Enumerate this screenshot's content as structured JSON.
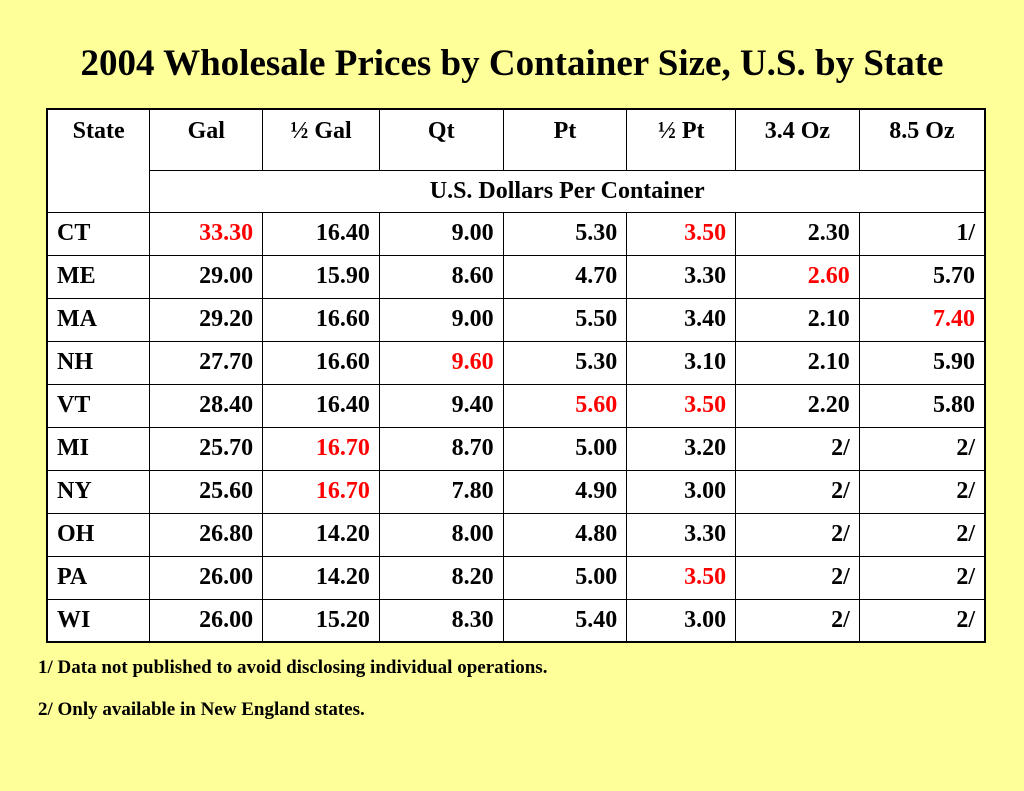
{
  "title": "2004 Wholesale Prices by Container Size, U.S. by State",
  "table": {
    "headers": [
      "State",
      "Gal",
      "½ Gal",
      "Qt",
      "Pt",
      "½ Pt",
      "3.4 Oz",
      "8.5 Oz"
    ],
    "units": "U.S. Dollars Per Container",
    "highlight_color": "#FF0000",
    "rows": [
      {
        "state": "CT",
        "values": [
          "33.30",
          "16.40",
          "9.00",
          "5.30",
          "3.50",
          "2.30",
          "1/"
        ],
        "highlight": [
          0,
          4
        ]
      },
      {
        "state": "ME",
        "values": [
          "29.00",
          "15.90",
          "8.60",
          "4.70",
          "3.30",
          "2.60",
          "5.70"
        ],
        "highlight": [
          5
        ]
      },
      {
        "state": "MA",
        "values": [
          "29.20",
          "16.60",
          "9.00",
          "5.50",
          "3.40",
          "2.10",
          "7.40"
        ],
        "highlight": [
          6
        ]
      },
      {
        "state": "NH",
        "values": [
          "27.70",
          "16.60",
          "9.60",
          "5.30",
          "3.10",
          "2.10",
          "5.90"
        ],
        "highlight": [
          2
        ]
      },
      {
        "state": "VT",
        "values": [
          "28.40",
          "16.40",
          "9.40",
          "5.60",
          "3.50",
          "2.20",
          "5.80"
        ],
        "highlight": [
          3,
          4
        ]
      },
      {
        "state": "MI",
        "values": [
          "25.70",
          "16.70",
          "8.70",
          "5.00",
          "3.20",
          "2/",
          "2/"
        ],
        "highlight": [
          1
        ]
      },
      {
        "state": "NY",
        "values": [
          "25.60",
          "16.70",
          "7.80",
          "4.90",
          "3.00",
          "2/",
          "2/"
        ],
        "highlight": [
          1
        ]
      },
      {
        "state": "OH",
        "values": [
          "26.80",
          "14.20",
          "8.00",
          "4.80",
          "3.30",
          "2/",
          "2/"
        ],
        "highlight": []
      },
      {
        "state": "PA",
        "values": [
          "26.00",
          "14.20",
          "8.20",
          "5.00",
          "3.50",
          "2/",
          "2/"
        ],
        "highlight": [
          4
        ]
      },
      {
        "state": "WI",
        "values": [
          "26.00",
          "15.20",
          "8.30",
          "5.40",
          "3.00",
          "2/",
          "2/"
        ],
        "highlight": []
      }
    ]
  },
  "footnotes": [
    "1/ Data not published to avoid disclosing individual operations.",
    "2/ Only available in New England states."
  ]
}
